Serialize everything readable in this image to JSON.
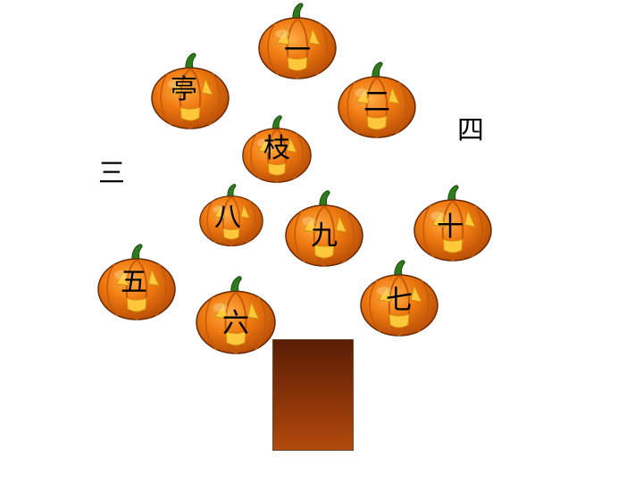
{
  "pumpkins": [
    {
      "char": "一"
    },
    {
      "char": "亭"
    },
    {
      "char": "二"
    },
    {
      "char": "枝"
    },
    {
      "char": "八"
    },
    {
      "char": "九"
    },
    {
      "char": "十"
    },
    {
      "char": "五"
    },
    {
      "char": "六"
    },
    {
      "char": "七"
    }
  ],
  "loose_labels": {
    "left": "三",
    "right": "四"
  },
  "colors": {
    "pumpkin": "#f07a10",
    "pumpkin_dark": "#b44a06",
    "stem": "#2e7a1c",
    "glow": "#ffc83a",
    "trunk": "#8a3408"
  }
}
